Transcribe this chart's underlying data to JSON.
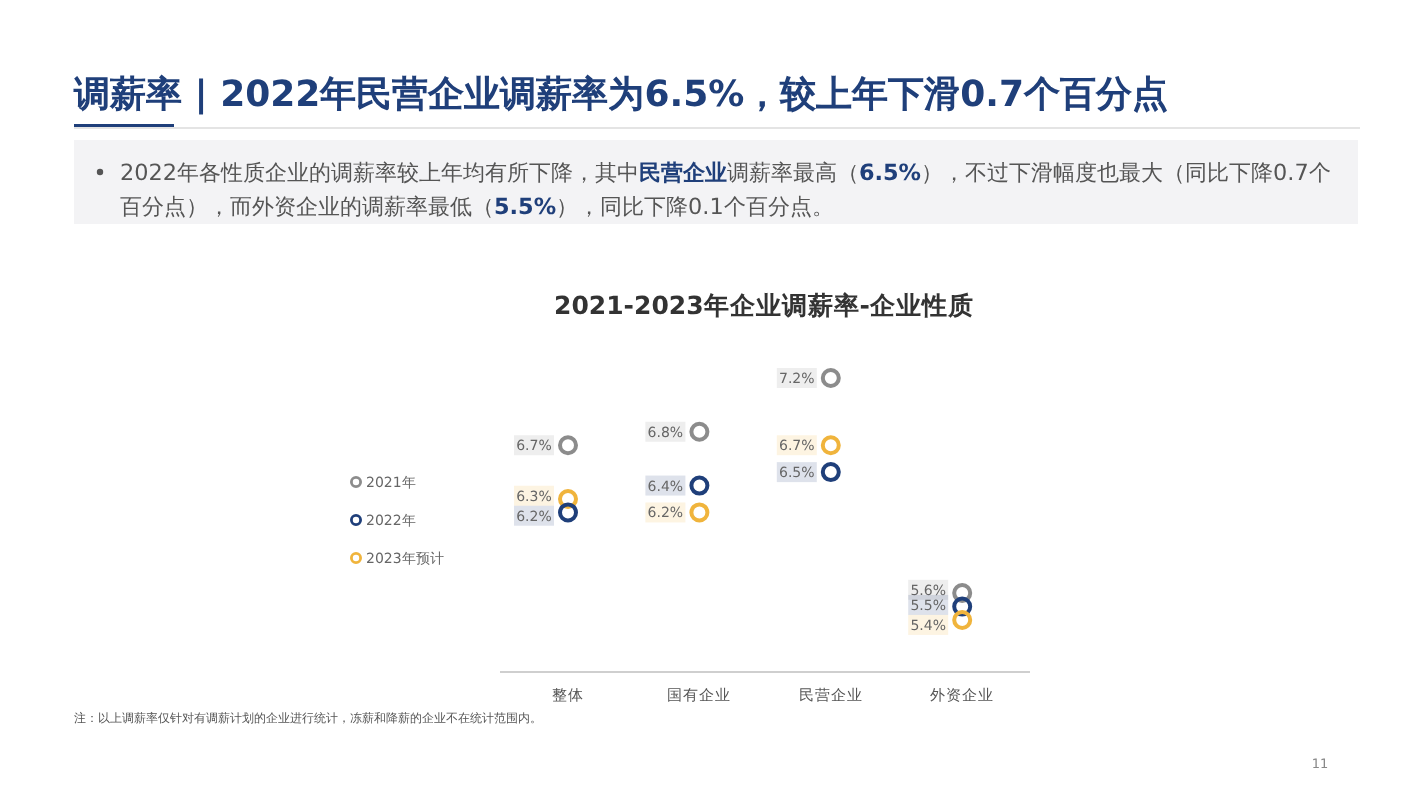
{
  "chart_data": {
    "type": "scatter",
    "title": "调薪率 | 2022年民营企业调薪率为6.5%，较上年下滑0.7个百分点",
    "subtitle": "2022年各性质企业的调薪率较上年均有所下降，其中**民营企业**调薪率最高（**6.5%**），不过下滑幅度也最大（同比下降0.7个百分点），而外资企业的调薪率最低（**5.5%**），同比下降0.1个百分点。",
    "annotations": [
      "2021-2023年企业调薪率-企业性质",
      "注：以上调薪率仅针对有调薪计划的企业进行统计，冻薪和降薪的企业不在统计范围内。",
      "11"
    ],
    "categories": [
      "整体",
      "国有企业",
      "民营企业",
      "外资企业"
    ],
    "series": [
      {
        "name": "2021年",
        "color": "#8c8c8c",
        "values": [
          6.7,
          6.8,
          7.2,
          5.6
        ],
        "value_labels": [
          "6.7%",
          "6.8%",
          "7.2%",
          "5.6%"
        ]
      },
      {
        "name": "2022年",
        "color": "#1f3f7a",
        "values": [
          6.2,
          6.4,
          6.5,
          5.5
        ],
        "value_labels": [
          "6.2%",
          "6.4%",
          "6.5%",
          "5.5%"
        ]
      },
      {
        "name": "2023年预计",
        "color": "#f0b43c",
        "values": [
          6.3,
          6.2,
          6.7,
          5.4
        ],
        "value_labels": [
          "6.3%",
          "6.2%",
          "6.7%",
          "5.4%"
        ]
      }
    ],
    "marker": "circle",
    "legend": "left"
  }
}
